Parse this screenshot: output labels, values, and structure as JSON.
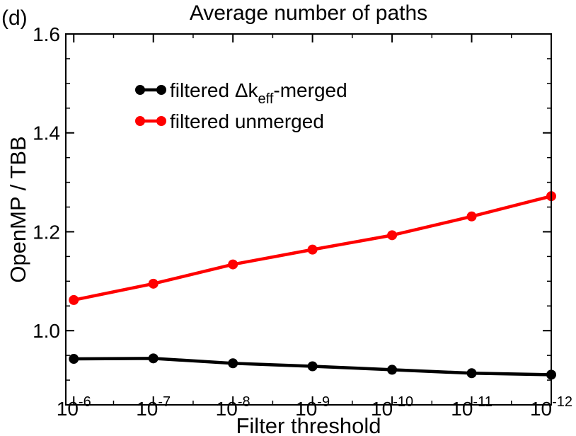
{
  "chart_data": {
    "type": "line",
    "panel_label": "(d)",
    "title": "Average number of paths",
    "xlabel": "Filter threshold",
    "ylabel": "OpenMP / TBB",
    "ylim": [
      0.85,
      1.6
    ],
    "xlim": [
      -5.9,
      -12
    ],
    "x": [
      -6,
      -7,
      -8,
      -9,
      -10,
      -11,
      -12
    ],
    "x_tick_base": "10",
    "x_ticks": [
      {
        "value": -6,
        "exponent": "-6"
      },
      {
        "value": -7,
        "exponent": "-7"
      },
      {
        "value": -8,
        "exponent": "-8"
      },
      {
        "value": -9,
        "exponent": "-9"
      },
      {
        "value": -10,
        "exponent": "-10"
      },
      {
        "value": -11,
        "exponent": "-11"
      },
      {
        "value": -12,
        "exponent": "-12"
      }
    ],
    "y_ticks": [
      {
        "value": 1.0,
        "label": "1.0"
      },
      {
        "value": 1.2,
        "label": "1.2"
      },
      {
        "value": 1.4,
        "label": "1.4"
      },
      {
        "value": 1.6,
        "label": "1.6"
      }
    ],
    "y_minor_step": 0.05,
    "legend_position": "top-left",
    "series": [
      {
        "name": "filtered Δk_eff-merged",
        "legend_prefix": "filtered Δk",
        "legend_sub": "eff",
        "legend_suffix": "-merged",
        "color": "#000000",
        "values": [
          0.943,
          0.944,
          0.934,
          0.928,
          0.921,
          0.914,
          0.911
        ]
      },
      {
        "name": "filtered unmerged",
        "legend_prefix": "filtered unmerged",
        "legend_sub": "",
        "legend_suffix": "",
        "color": "#ff0000",
        "values": [
          1.062,
          1.095,
          1.134,
          1.164,
          1.193,
          1.231,
          1.272
        ]
      }
    ]
  }
}
